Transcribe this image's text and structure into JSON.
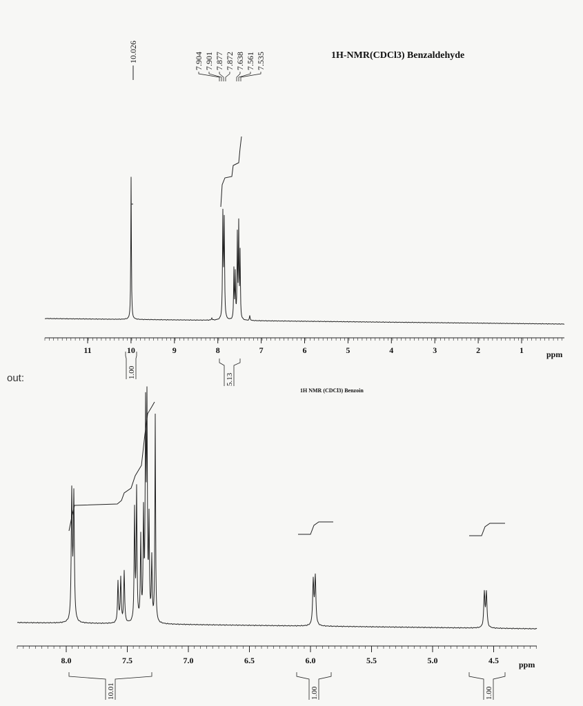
{
  "spectrum_1": {
    "title": "1H-NMR(CDCl3) Benzaldehyde",
    "peak_labels": [
      "10.026",
      "7.904",
      "7.901",
      "7.877",
      "7.872",
      "7.638",
      "7.561",
      "7.535"
    ],
    "axis_ticks": [
      "11",
      "10",
      "9",
      "8",
      "7",
      "6",
      "5",
      "4",
      "3",
      "2",
      "1"
    ],
    "axis_unit": "ppm",
    "integrals": [
      "1.00",
      "5.13"
    ]
  },
  "caption": "out:",
  "spectrum_2": {
    "title": "1H NMR (CDCl3) Benzoin",
    "axis_ticks": [
      "8.0",
      "7.5",
      "7.0",
      "6.5",
      "6.0",
      "5.5",
      "5.0",
      "4.5"
    ],
    "axis_unit": "ppm",
    "integrals": [
      "10.01",
      "1.00",
      "1.00"
    ]
  }
}
